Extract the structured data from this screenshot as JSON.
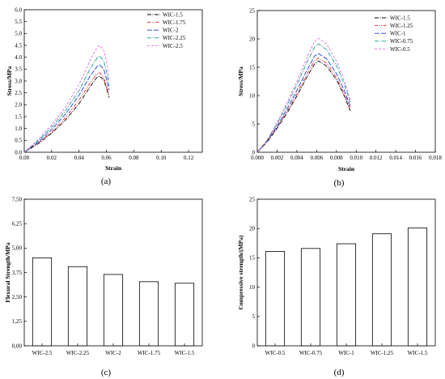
{
  "chart_data": [
    {
      "id": "a",
      "type": "line",
      "caption": "(a)",
      "xlabel": "Strain",
      "ylabel": "Stress/MPa",
      "xlim": [
        0,
        0.13
      ],
      "ylim": [
        0,
        6.0
      ],
      "xticks": [
        0.0,
        0.02,
        0.04,
        0.06,
        0.08,
        0.1,
        0.12
      ],
      "xtick_labels": [
        "0.00",
        "0.02",
        "0.04",
        "0.06",
        "0.08",
        "0.10",
        "0.12"
      ],
      "yticks": [
        0.0,
        0.5,
        1.0,
        1.5,
        2.0,
        2.5,
        3.0,
        3.5,
        4.0,
        4.5,
        5.0,
        5.5,
        6.0
      ],
      "ytick_labels": [
        "0.0",
        "0.5",
        "1.0",
        "1.5",
        "2.0",
        "2.5",
        "3.0",
        "3.5",
        "4.0",
        "4.5",
        "5.0",
        "5.5",
        "6.0"
      ],
      "legend_position": "top-right",
      "series": [
        {
          "name": "WIC-1.5",
          "color": "#000000",
          "dash": "5,1.5,1,1.5",
          "x": [
            0,
            0.01,
            0.02,
            0.03,
            0.04,
            0.048,
            0.053,
            0.055,
            0.058,
            0.06,
            0.062
          ],
          "y": [
            0,
            0.35,
            0.8,
            1.35,
            2.05,
            2.75,
            3.15,
            3.2,
            3.05,
            2.7,
            2.3
          ]
        },
        {
          "name": "WIC-1.75",
          "color": "#e8211d",
          "dash": "4,1.5,1,1.5,1,1.5",
          "x": [
            0,
            0.01,
            0.02,
            0.03,
            0.04,
            0.048,
            0.053,
            0.055,
            0.058,
            0.06,
            0.062
          ],
          "y": [
            0,
            0.38,
            0.85,
            1.45,
            2.2,
            2.9,
            3.3,
            3.35,
            3.15,
            2.8,
            2.4
          ]
        },
        {
          "name": "WIC-2",
          "color": "#1f3fd6",
          "dash": "6,2",
          "x": [
            0,
            0.01,
            0.02,
            0.03,
            0.04,
            0.048,
            0.053,
            0.055,
            0.058,
            0.06,
            0.062
          ],
          "y": [
            0,
            0.42,
            0.95,
            1.6,
            2.4,
            3.2,
            3.6,
            3.68,
            3.5,
            3.1,
            2.6
          ]
        },
        {
          "name": "WIC-2.25",
          "color": "#129a8a",
          "dash": "5,1.5,1,1.5",
          "x": [
            0,
            0.01,
            0.02,
            0.03,
            0.04,
            0.048,
            0.053,
            0.055,
            0.058,
            0.06,
            0.062
          ],
          "y": [
            0,
            0.48,
            1.05,
            1.75,
            2.6,
            3.5,
            3.95,
            4.05,
            3.85,
            3.4,
            2.8
          ]
        },
        {
          "name": "WIC-2.5",
          "color": "#e06ee0",
          "dash": "3,2",
          "x": [
            0,
            0.01,
            0.02,
            0.03,
            0.04,
            0.048,
            0.053,
            0.055,
            0.058,
            0.06,
            0.062
          ],
          "y": [
            0,
            0.52,
            1.15,
            1.9,
            2.85,
            3.85,
            4.4,
            4.5,
            4.3,
            3.8,
            3.05
          ]
        }
      ]
    },
    {
      "id": "b",
      "type": "line",
      "caption": "(b)",
      "xlabel": "Strain",
      "ylabel": "Stress/MPa",
      "xlim": [
        0,
        0.018
      ],
      "ylim": [
        0,
        25
      ],
      "xticks": [
        0.0,
        0.002,
        0.004,
        0.006,
        0.008,
        0.01,
        0.012,
        0.014,
        0.016,
        0.018
      ],
      "xtick_labels": [
        "0.000",
        "0.002",
        "0.004",
        "0.006",
        "0.008",
        "0.010",
        "0.012",
        "0.014",
        "0.016",
        "0.018"
      ],
      "yticks": [
        0,
        5,
        10,
        15,
        20,
        25
      ],
      "ytick_labels": [
        "0",
        "5",
        "10",
        "15",
        "20",
        "25"
      ],
      "legend_position": "top-right",
      "series": [
        {
          "name": "WIC-1.5",
          "color": "#000000",
          "dash": "5,1.5,1,1.5",
          "x": [
            0,
            0.001,
            0.002,
            0.003,
            0.004,
            0.005,
            0.0058,
            0.0062,
            0.007,
            0.008,
            0.0088,
            0.0094
          ],
          "y": [
            0,
            1.8,
            4.2,
            6.9,
            9.9,
            13.2,
            15.6,
            16.1,
            15.2,
            12.8,
            9.9,
            7.3
          ]
        },
        {
          "name": "WIC-1.25",
          "color": "#e8211d",
          "dash": "4,1.5,1,1.5,1,1.5",
          "x": [
            0,
            0.001,
            0.002,
            0.003,
            0.004,
            0.005,
            0.0058,
            0.0062,
            0.007,
            0.008,
            0.0088,
            0.0094
          ],
          "y": [
            0,
            1.9,
            4.4,
            7.2,
            10.3,
            13.7,
            16.2,
            16.6,
            15.7,
            13.2,
            10.3,
            7.7
          ]
        },
        {
          "name": "WIC-1",
          "color": "#1f3fd6",
          "dash": "6,2",
          "x": [
            0,
            0.001,
            0.002,
            0.003,
            0.004,
            0.005,
            0.0058,
            0.0062,
            0.007,
            0.008,
            0.0088,
            0.0094
          ],
          "y": [
            0,
            2.0,
            4.6,
            7.6,
            10.9,
            14.4,
            17.0,
            17.4,
            16.5,
            13.9,
            10.9,
            8.1
          ]
        },
        {
          "name": "WIC-0.75",
          "color": "#129a8a",
          "dash": "5,1.5,1,1.5",
          "x": [
            0,
            0.001,
            0.002,
            0.003,
            0.004,
            0.005,
            0.0058,
            0.0062,
            0.007,
            0.008,
            0.0088,
            0.0094
          ],
          "y": [
            0,
            2.1,
            5.0,
            8.3,
            11.9,
            15.8,
            18.6,
            19.1,
            18.1,
            15.3,
            12.0,
            8.8
          ]
        },
        {
          "name": "WIC-0.5",
          "color": "#e06ee0",
          "dash": "3,2",
          "x": [
            0,
            0.001,
            0.002,
            0.003,
            0.004,
            0.005,
            0.0058,
            0.0062,
            0.007,
            0.008,
            0.0088,
            0.0094
          ],
          "y": [
            0,
            2.2,
            5.2,
            8.7,
            12.5,
            16.6,
            19.6,
            20.1,
            19.1,
            16.1,
            12.6,
            9.2
          ]
        }
      ]
    },
    {
      "id": "c",
      "type": "bar",
      "caption": "(c)",
      "xlabel": "",
      "ylabel": "Flexural Strength/MPa",
      "ylim": [
        0,
        7.5
      ],
      "yticks": [
        0,
        1.25,
        2.5,
        3.75,
        5.0,
        6.25,
        7.5
      ],
      "ytick_labels": [
        "0,00",
        "1,25",
        "2,50",
        "3,75",
        "5,00",
        "6,25",
        "7,50"
      ],
      "categories": [
        "WIC-2.5",
        "WIC-2.25",
        "WIC-2",
        "WIC-1.75",
        "WIC-1.5"
      ],
      "values": [
        4.5,
        4.05,
        3.65,
        3.28,
        3.2
      ]
    },
    {
      "id": "d",
      "type": "bar",
      "caption": "(d)",
      "xlabel": "",
      "ylabel": "Compressive strength/(MPa)",
      "ylim": [
        0,
        25
      ],
      "yticks": [
        0,
        5,
        10,
        15,
        20,
        25
      ],
      "ytick_labels": [
        "0",
        "5",
        "10",
        "15",
        "20",
        "25"
      ],
      "categories": [
        "WIC-0.5",
        "WIC-0.75",
        "WIC-1",
        "WIC-1.25",
        "WIC-1.5"
      ],
      "values": [
        16.1,
        16.6,
        17.4,
        19.1,
        20.1
      ]
    }
  ]
}
